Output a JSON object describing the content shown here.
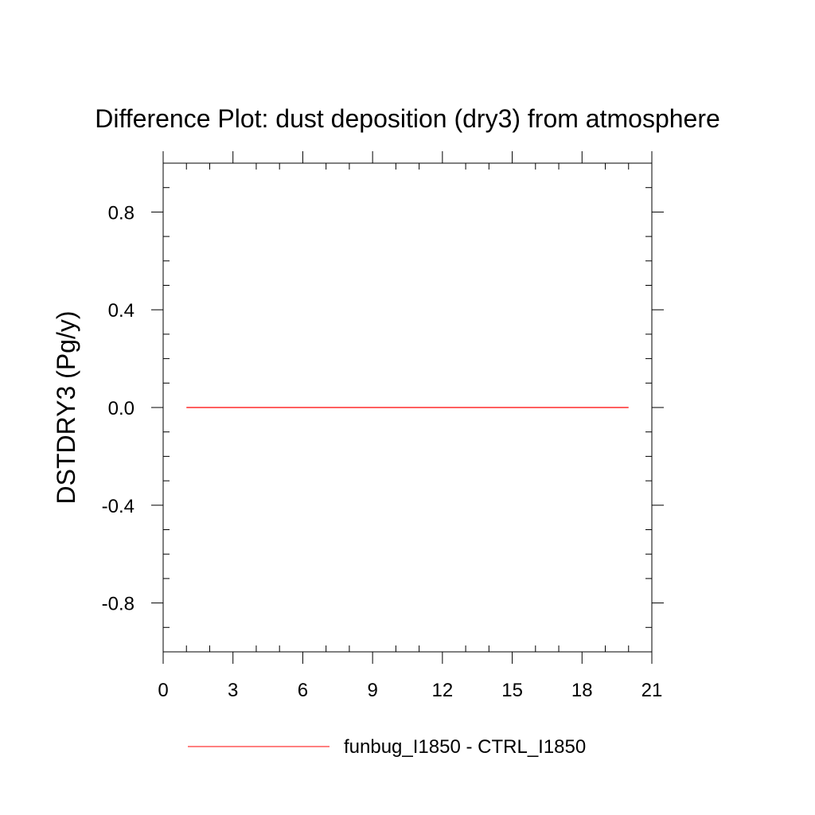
{
  "chart_data": {
    "type": "line",
    "title": "Difference Plot: dust deposition (dry3) from atmosphere",
    "xlabel": "",
    "ylabel": "DSTDRY3  (Pg/y)",
    "xlim": [
      0,
      21
    ],
    "ylim": [
      -1,
      1
    ],
    "x_ticks": [
      0,
      3,
      6,
      9,
      12,
      15,
      18,
      21
    ],
    "x_tick_labels": [
      "0",
      "3",
      "6",
      "9",
      "12",
      "15",
      "18",
      "21"
    ],
    "y_ticks": [
      0.8,
      0.4,
      0.0,
      -0.4,
      -0.8
    ],
    "y_tick_labels": [
      "0.8",
      "0.4",
      "0.0",
      "-0.4",
      "-0.8"
    ],
    "grid": false,
    "legend_position": "bottom",
    "series": [
      {
        "name": "funbug_I1850 - CTRL_I1850",
        "color": "#ff0000",
        "x": [
          1,
          2,
          3,
          4,
          5,
          6,
          7,
          8,
          9,
          10,
          11,
          12,
          13,
          14,
          15,
          16,
          17,
          18,
          19,
          20
        ],
        "values": [
          0,
          0,
          0,
          0,
          0,
          0,
          0,
          0,
          0,
          0,
          0,
          0,
          0,
          0,
          0,
          0,
          0,
          0,
          0,
          0
        ]
      }
    ]
  }
}
